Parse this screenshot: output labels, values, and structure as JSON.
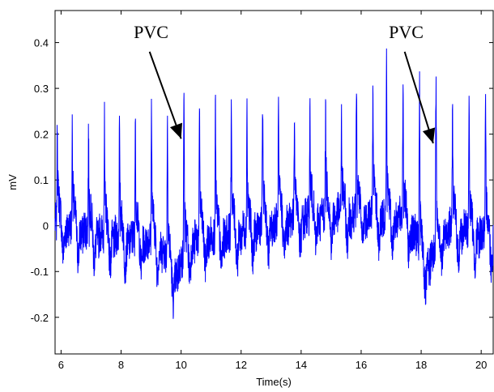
{
  "chart_data": {
    "type": "line",
    "title": "",
    "xlabel": "Time(s)",
    "ylabel": "mV",
    "xlim": [
      5.8,
      20.4
    ],
    "ylim": [
      -0.28,
      0.47
    ],
    "xticks": [
      6,
      8,
      10,
      12,
      14,
      16,
      18,
      20
    ],
    "yticks": [
      -0.2,
      -0.1,
      0,
      0.1,
      0.2,
      0.3,
      0.4
    ],
    "ytick_labels": [
      "-0.2",
      "-0.1",
      "0",
      "0.1",
      "0.2",
      "0.3",
      "0.4"
    ],
    "grid": false,
    "series": [
      {
        "color": "#0000ff",
        "beats": [
          {
            "t": 5.88,
            "peak": 0.25
          },
          {
            "t": 6.38,
            "peak": 0.24
          },
          {
            "t": 6.92,
            "peak": 0.22
          },
          {
            "t": 7.45,
            "peak": 0.23
          },
          {
            "t": 7.95,
            "peak": 0.24
          },
          {
            "t": 8.48,
            "peak": 0.23
          },
          {
            "t": 9.02,
            "peak": 0.3
          },
          {
            "t": 9.55,
            "peak": 0.29
          },
          {
            "t": 10.1,
            "peak": 0.34
          },
          {
            "t": 10.62,
            "peak": 0.29
          },
          {
            "t": 11.15,
            "peak": 0.29
          },
          {
            "t": 11.68,
            "peak": 0.29
          },
          {
            "t": 12.2,
            "peak": 0.29
          },
          {
            "t": 12.72,
            "peak": 0.29
          },
          {
            "t": 13.25,
            "peak": 0.28
          },
          {
            "t": 13.78,
            "peak": 0.27
          },
          {
            "t": 14.3,
            "peak": 0.27
          },
          {
            "t": 14.82,
            "peak": 0.26
          },
          {
            "t": 15.35,
            "peak": 0.26
          },
          {
            "t": 15.85,
            "peak": 0.32
          },
          {
            "t": 16.4,
            "peak": 0.33
          },
          {
            "t": 16.85,
            "peak": 0.38
          },
          {
            "t": 17.4,
            "peak": 0.35
          },
          {
            "t": 17.95,
            "peak": 0.34
          },
          {
            "t": 18.5,
            "peak": 0.38
          },
          {
            "t": 19.05,
            "peak": 0.28
          },
          {
            "t": 19.6,
            "peak": 0.3
          },
          {
            "t": 20.15,
            "peak": 0.28
          }
        ]
      }
    ],
    "annotations": [
      {
        "text": "PVC",
        "label_x": 9.0,
        "label_y": 0.41,
        "arrow_from": [
          8.95,
          0.38
        ],
        "arrow_to": [
          10.0,
          0.19
        ]
      },
      {
        "text": "PVC",
        "label_x": 17.5,
        "label_y": 0.41,
        "arrow_from": [
          17.45,
          0.38
        ],
        "arrow_to": [
          18.4,
          0.18
        ]
      }
    ]
  }
}
